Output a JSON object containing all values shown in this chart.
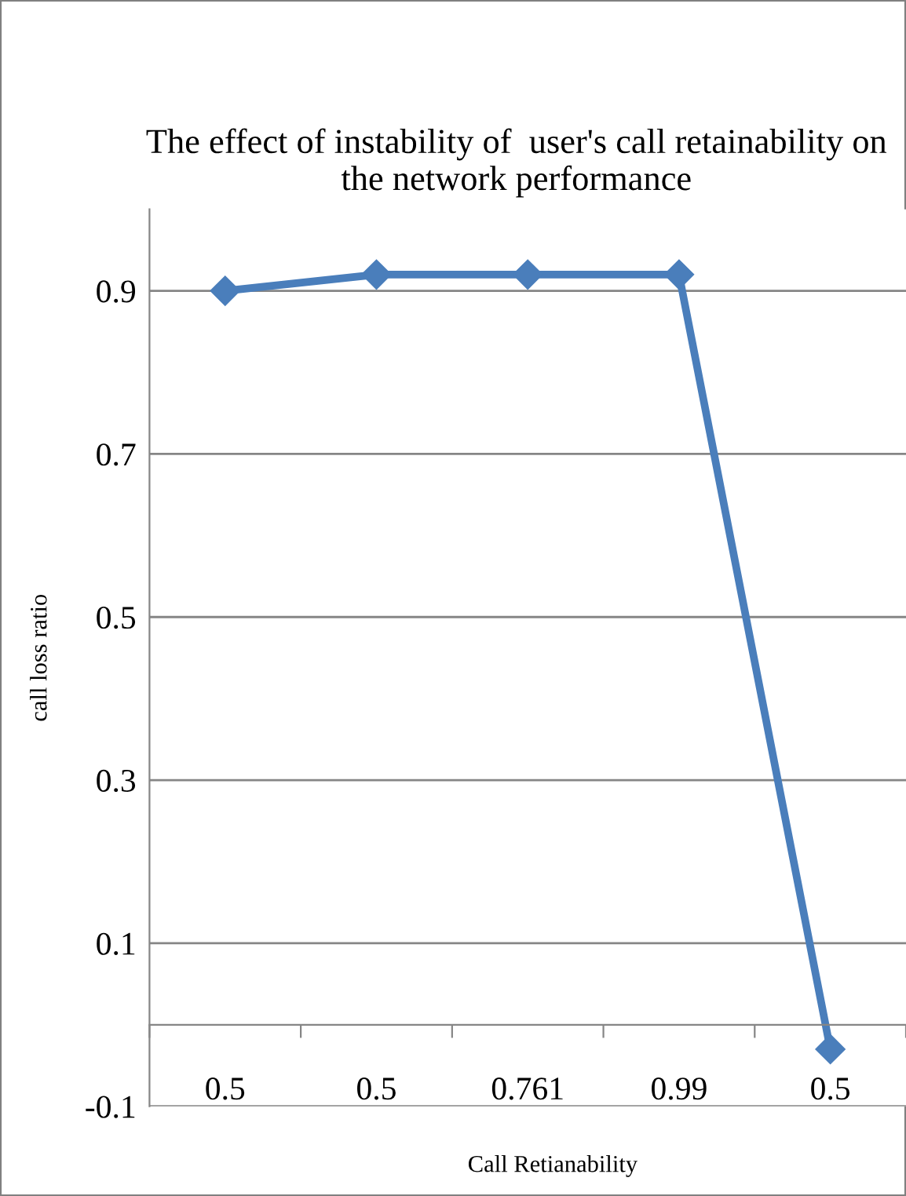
{
  "chart_data": {
    "type": "line",
    "title": "The effect of instability of  user's call retainability on the network performance",
    "xlabel": "Call Retianability",
    "ylabel": "call loss ratio",
    "categories": [
      "0.5",
      "0.5",
      "0.761",
      "0.99",
      "0.5"
    ],
    "series": [
      {
        "color": "#4a7ebb",
        "values": [
          0.9,
          0.92,
          0.92,
          0.92,
          -0.03
        ]
      }
    ],
    "ylim": [
      -0.1,
      1.0
    ],
    "yticks": [
      -0.1,
      0.1,
      0.3,
      0.5,
      0.7,
      0.9
    ],
    "grid": "y",
    "marker": "diamond",
    "line_style": "solid",
    "legend": false
  }
}
